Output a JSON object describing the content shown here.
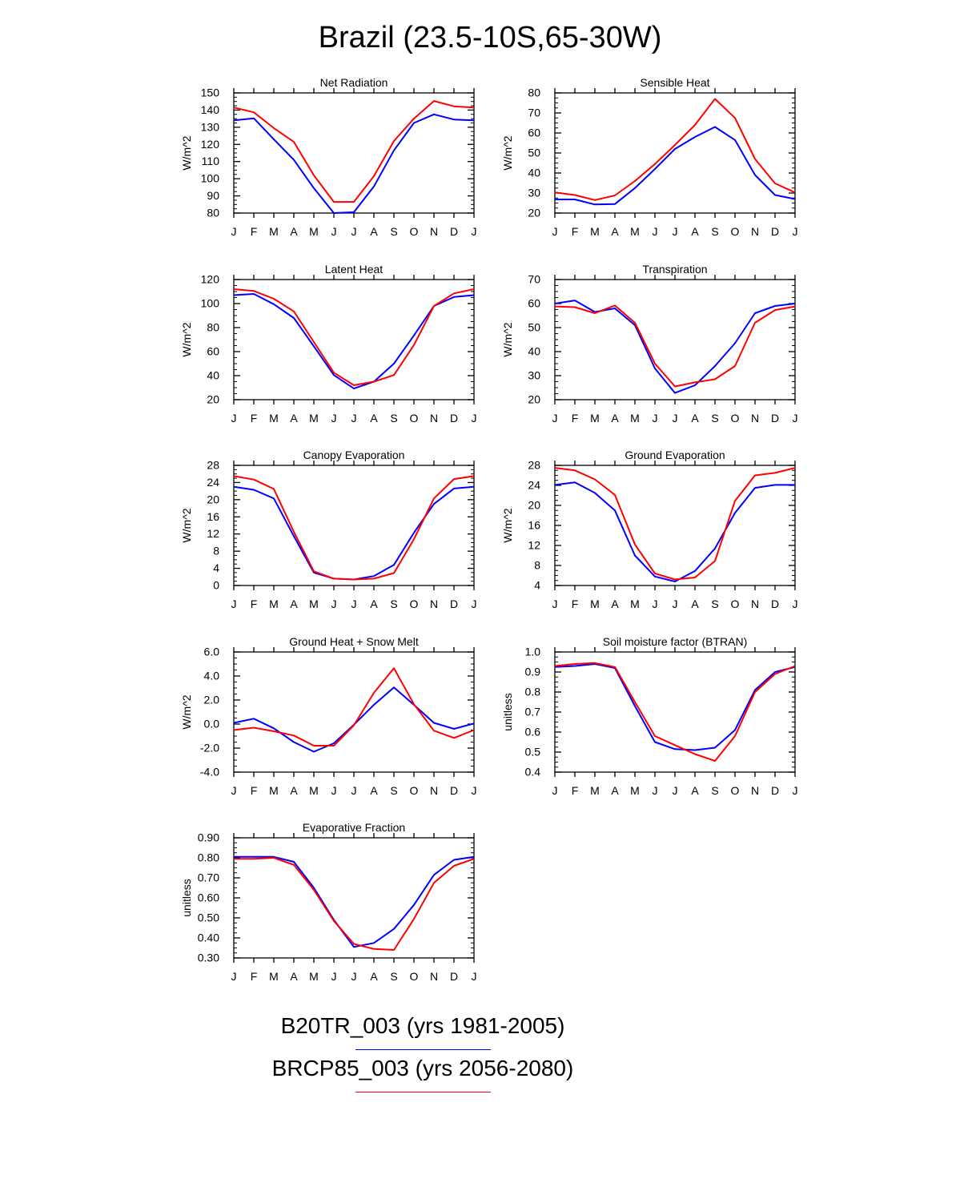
{
  "title": "Brazil (23.5-10S,65-30W)",
  "colors": {
    "run1": "#0000ff",
    "run2": "#ff0000"
  },
  "legend": [
    {
      "label": "B20TR_003 (yrs 1981-2005)",
      "color": "#0000ff"
    },
    {
      "label": "BRCP85_003 (yrs 2056-2080)",
      "color": "#ff0000"
    }
  ],
  "chart_data": [
    {
      "type": "line",
      "title": "Net Radiation",
      "ylabel": "W/m^2",
      "categories": [
        "J",
        "F",
        "M",
        "A",
        "M",
        "J",
        "J",
        "A",
        "S",
        "O",
        "N",
        "D",
        "J"
      ],
      "ylim": [
        80,
        150
      ],
      "yticks": [
        "150",
        "140",
        "130",
        "120",
        "110",
        "100",
        "90",
        "80"
      ],
      "series": [
        {
          "values": [
            134,
            135.2,
            123,
            111,
            94.5,
            80,
            80.5,
            95.5,
            116.5,
            132.5,
            137.5,
            134.5,
            134
          ],
          "color": "#0000ff"
        },
        {
          "values": [
            141.5,
            138.7,
            129.5,
            121.5,
            102,
            86.5,
            86.5,
            101.5,
            122,
            135,
            145.3,
            142.2,
            141.5
          ],
          "color": "#ff0000"
        }
      ]
    },
    {
      "type": "line",
      "title": "Sensible Heat",
      "ylabel": "W/m^2",
      "categories": [
        "J",
        "F",
        "M",
        "A",
        "M",
        "J",
        "J",
        "A",
        "S",
        "O",
        "N",
        "D",
        "J"
      ],
      "ylim": [
        20,
        80
      ],
      "yticks": [
        "80",
        "70",
        "60",
        "50",
        "40",
        "30",
        "20"
      ],
      "series": [
        {
          "values": [
            26.8,
            26.8,
            24.3,
            24.5,
            32.5,
            42,
            52,
            58,
            63,
            56.5,
            39,
            29,
            27
          ],
          "color": "#0000ff"
        },
        {
          "values": [
            30.3,
            29,
            26.5,
            28.8,
            36,
            44.5,
            54,
            64,
            77,
            67.5,
            47,
            34.8,
            30.3
          ],
          "color": "#ff0000"
        }
      ]
    },
    {
      "type": "line",
      "title": "Latent Heat",
      "ylabel": "W/m^2",
      "categories": [
        "J",
        "F",
        "M",
        "A",
        "M",
        "J",
        "J",
        "A",
        "S",
        "O",
        "N",
        "D",
        "J"
      ],
      "ylim": [
        20,
        120
      ],
      "yticks": [
        "120",
        "100",
        "80",
        "60",
        "40",
        "20"
      ],
      "series": [
        {
          "values": [
            107,
            108,
            99.5,
            88,
            64.5,
            40.5,
            29.3,
            35,
            50,
            73.5,
            98,
            105.5,
            107
          ],
          "color": "#0000ff"
        },
        {
          "values": [
            112,
            110.5,
            104,
            93.5,
            68,
            42.5,
            32,
            35,
            40.5,
            65.5,
            98,
            108.5,
            112
          ],
          "color": "#ff0000"
        }
      ]
    },
    {
      "type": "line",
      "title": "Transpiration",
      "ylabel": "W/m^2",
      "categories": [
        "J",
        "F",
        "M",
        "A",
        "M",
        "J",
        "J",
        "A",
        "S",
        "O",
        "N",
        "D",
        "J"
      ],
      "ylim": [
        20,
        70
      ],
      "yticks": [
        "70",
        "60",
        "50",
        "40",
        "30",
        "20"
      ],
      "series": [
        {
          "values": [
            60,
            61.3,
            56.5,
            58,
            51,
            33,
            22.8,
            26,
            34,
            43.5,
            56,
            59,
            60
          ],
          "color": "#0000ff"
        },
        {
          "values": [
            58.8,
            58.5,
            56,
            59.2,
            52,
            35,
            25.5,
            27.2,
            28.5,
            34,
            52,
            57.3,
            58.8
          ],
          "color": "#ff0000"
        }
      ]
    },
    {
      "type": "line",
      "title": "Canopy Evaporation",
      "ylabel": "W/m^2",
      "categories": [
        "J",
        "F",
        "M",
        "A",
        "M",
        "J",
        "J",
        "A",
        "S",
        "O",
        "N",
        "D",
        "J"
      ],
      "ylim": [
        0,
        28
      ],
      "yticks": [
        "28",
        "24",
        "20",
        "16",
        "12",
        "8",
        "4",
        "0"
      ],
      "series": [
        {
          "values": [
            23,
            22.3,
            20.3,
            11.5,
            3,
            1.6,
            1.4,
            2.2,
            4.8,
            12.3,
            19,
            22.6,
            23
          ],
          "color": "#0000ff"
        },
        {
          "values": [
            25.5,
            24.7,
            22.5,
            12.5,
            3.3,
            1.6,
            1.4,
            1.6,
            2.9,
            10.8,
            20.3,
            24.8,
            25.5
          ],
          "color": "#ff0000"
        }
      ]
    },
    {
      "type": "line",
      "title": "Ground Evaporation",
      "ylabel": "W/m^2",
      "categories": [
        "J",
        "F",
        "M",
        "A",
        "M",
        "J",
        "J",
        "A",
        "S",
        "O",
        "N",
        "D",
        "J"
      ],
      "ylim": [
        4,
        28
      ],
      "yticks": [
        "28",
        "24",
        "20",
        "16",
        "12",
        "8",
        "4"
      ],
      "series": [
        {
          "values": [
            24.1,
            24.6,
            22.5,
            19,
            10,
            5.8,
            4.8,
            6.9,
            11.4,
            18.5,
            23.5,
            24.1,
            24.1
          ],
          "color": "#0000ff"
        },
        {
          "values": [
            27.5,
            27,
            25.2,
            22.1,
            12.2,
            6.4,
            5.2,
            5.6,
            8.9,
            20.9,
            26,
            26.5,
            27.5
          ],
          "color": "#ff0000"
        }
      ]
    },
    {
      "type": "line",
      "title": "Ground Heat + Snow Melt",
      "ylabel": "W/m^2",
      "categories": [
        "J",
        "F",
        "M",
        "A",
        "M",
        "J",
        "J",
        "A",
        "S",
        "O",
        "N",
        "D",
        "J"
      ],
      "ylim": [
        -4.0,
        6.0
      ],
      "yticks": [
        "6.0",
        "4.0",
        "2.0",
        "0.0",
        "-2.0",
        "-4.0"
      ],
      "series": [
        {
          "values": [
            0.1,
            0.45,
            -0.35,
            -1.5,
            -2.3,
            -1.6,
            -0.05,
            1.6,
            3.05,
            1.6,
            0.1,
            -0.4,
            0.05
          ],
          "color": "#0000ff"
        },
        {
          "values": [
            -0.5,
            -0.3,
            -0.6,
            -0.95,
            -1.8,
            -1.8,
            -0.1,
            2.6,
            4.65,
            1.65,
            -0.55,
            -1.15,
            -0.5
          ],
          "color": "#ff0000"
        }
      ]
    },
    {
      "type": "line",
      "title": "Soil moisture factor (BTRAN)",
      "ylabel": "unitless",
      "categories": [
        "J",
        "F",
        "M",
        "A",
        "M",
        "J",
        "J",
        "A",
        "S",
        "O",
        "N",
        "D",
        "J"
      ],
      "ylim": [
        0.4,
        1.0
      ],
      "yticks": [
        "1.0",
        "0.9",
        "0.8",
        "0.7",
        "0.6",
        "0.5",
        "0.4"
      ],
      "series": [
        {
          "values": [
            0.925,
            0.93,
            0.94,
            0.92,
            0.73,
            0.55,
            0.515,
            0.51,
            0.522,
            0.61,
            0.81,
            0.9,
            0.925
          ],
          "color": "#0000ff"
        },
        {
          "values": [
            0.93,
            0.94,
            0.945,
            0.925,
            0.75,
            0.58,
            0.535,
            0.49,
            0.456,
            0.58,
            0.8,
            0.89,
            0.93
          ],
          "color": "#ff0000"
        }
      ]
    },
    {
      "type": "line",
      "title": "Evaporative Fraction",
      "ylabel": "unitless",
      "categories": [
        "J",
        "F",
        "M",
        "A",
        "M",
        "J",
        "J",
        "A",
        "S",
        "O",
        "N",
        "D",
        "J"
      ],
      "ylim": [
        0.3,
        0.9
      ],
      "yticks": [
        "0.90",
        "0.80",
        "0.70",
        "0.60",
        "0.50",
        "0.40",
        "0.30"
      ],
      "series": [
        {
          "values": [
            0.805,
            0.805,
            0.805,
            0.78,
            0.65,
            0.49,
            0.355,
            0.375,
            0.445,
            0.565,
            0.715,
            0.79,
            0.805
          ],
          "color": "#0000ff"
        },
        {
          "values": [
            0.795,
            0.795,
            0.8,
            0.765,
            0.64,
            0.485,
            0.37,
            0.345,
            0.34,
            0.495,
            0.675,
            0.76,
            0.795
          ],
          "color": "#ff0000"
        }
      ]
    }
  ]
}
